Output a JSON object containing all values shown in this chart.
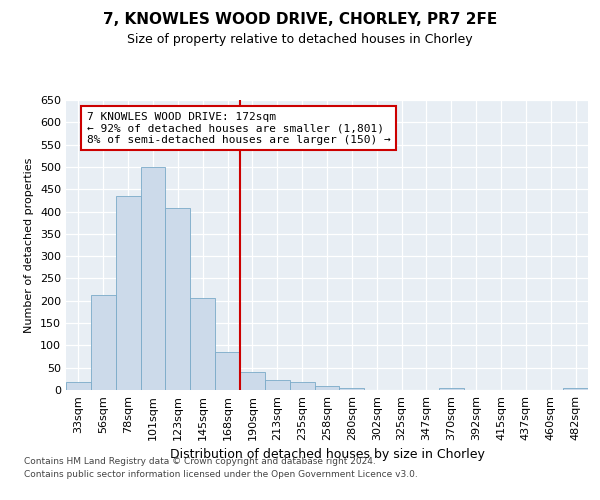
{
  "title": "7, KNOWLES WOOD DRIVE, CHORLEY, PR7 2FE",
  "subtitle": "Size of property relative to detached houses in Chorley",
  "xlabel": "Distribution of detached houses by size in Chorley",
  "ylabel": "Number of detached properties",
  "bar_labels": [
    "33sqm",
    "56sqm",
    "78sqm",
    "101sqm",
    "123sqm",
    "145sqm",
    "168sqm",
    "190sqm",
    "213sqm",
    "235sqm",
    "258sqm",
    "280sqm",
    "302sqm",
    "325sqm",
    "347sqm",
    "370sqm",
    "392sqm",
    "415sqm",
    "437sqm",
    "460sqm",
    "482sqm"
  ],
  "bar_values": [
    17,
    212,
    435,
    500,
    408,
    206,
    85,
    40,
    22,
    17,
    10,
    5,
    0,
    0,
    0,
    5,
    0,
    0,
    0,
    0,
    5
  ],
  "bar_color": "#ccdaea",
  "bar_edge_color": "#7aaac8",
  "vline_x_index": 6.5,
  "vline_color": "#cc0000",
  "annotation_text": "7 KNOWLES WOOD DRIVE: 172sqm\n← 92% of detached houses are smaller (1,801)\n8% of semi-detached houses are larger (150) →",
  "annotation_box_color": "#ffffff",
  "annotation_box_edge": "#cc0000",
  "ylim": [
    0,
    650
  ],
  "yticks": [
    0,
    50,
    100,
    150,
    200,
    250,
    300,
    350,
    400,
    450,
    500,
    550,
    600,
    650
  ],
  "bg_color": "#e8eef4",
  "grid_color": "#ffffff",
  "footer_line1": "Contains HM Land Registry data © Crown copyright and database right 2024.",
  "footer_line2": "Contains public sector information licensed under the Open Government Licence v3.0."
}
